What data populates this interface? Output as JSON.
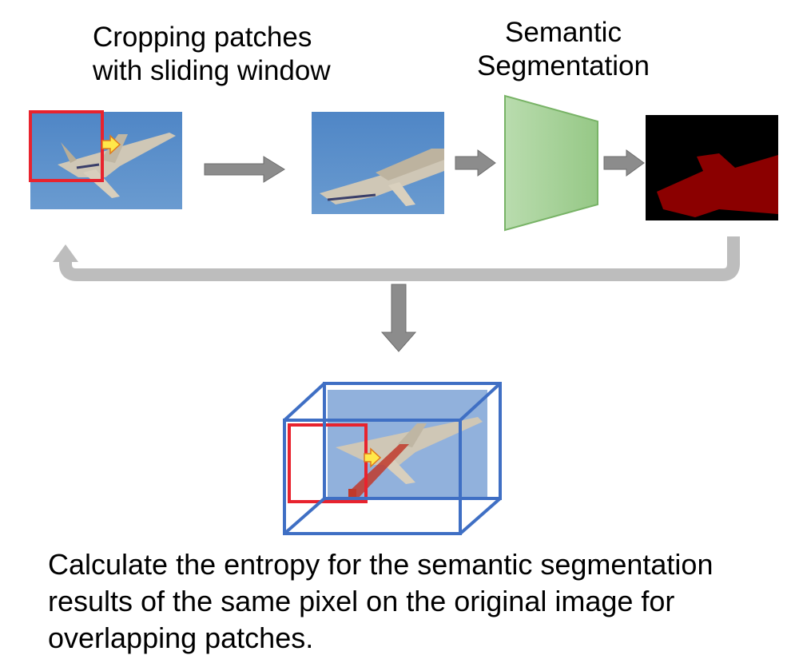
{
  "step_labels": {
    "cropping": [
      "Cropping patches",
      "with sliding window"
    ],
    "segmentation": [
      "Semantic",
      "Segmentation"
    ]
  },
  "caption": [
    "Calculate the entropy for the semantic segmentation",
    "results of the same pixel on the original image for",
    "overlapping patches."
  ],
  "colors": {
    "sky": "#5b8cc6",
    "crop_box": "#e8232e",
    "model": "#a9d39a",
    "mask_background": "#000000",
    "mask_object": "#8b0000",
    "arrow": "#8c8c8c",
    "loop_arrow": "#bdbdbd",
    "cube": "#3f6fc4"
  }
}
